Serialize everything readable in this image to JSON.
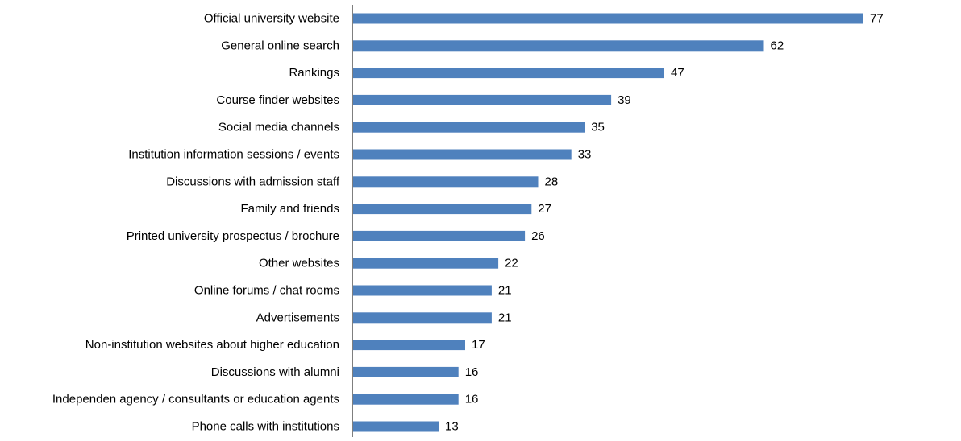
{
  "chart_data": {
    "type": "bar",
    "orientation": "horizontal",
    "title": "",
    "xlabel": "",
    "ylabel": "",
    "xlim": [
      0,
      77
    ],
    "grid": false,
    "legend": "none",
    "bar_color": "#4f81bd",
    "axis_color": "#7f7f7f",
    "categories": [
      "Official university website",
      "General online search",
      "Rankings",
      "Course finder websites",
      "Social media channels",
      "Institution information sessions / events",
      "Discussions with admission staff",
      "Family and friends",
      "Printed university prospectus / brochure",
      "Other websites",
      "Online forums / chat rooms",
      "Advertisements",
      "Non-institution websites about higher education",
      "Discussions with alumni",
      "Independen agency / consultants or education agents",
      "Phone calls with institutions"
    ],
    "values": [
      77,
      62,
      47,
      39,
      35,
      33,
      28,
      27,
      26,
      22,
      21,
      21,
      17,
      16,
      16,
      13
    ]
  }
}
